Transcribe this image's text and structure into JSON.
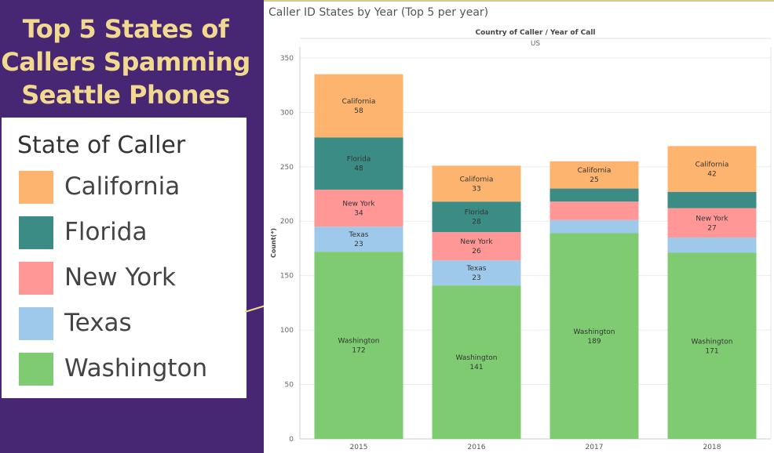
{
  "headline": {
    "lines": [
      "Top 5 States of",
      "Callers Spamming",
      "Seattle Phones"
    ]
  },
  "legend": {
    "title": "State of Caller",
    "items": [
      {
        "label": "California",
        "color": "#fdb46f"
      },
      {
        "label": "Florida",
        "color": "#3b8c85"
      },
      {
        "label": "New York",
        "color": "#ff9797"
      },
      {
        "label": "Texas",
        "color": "#9ec9ea"
      },
      {
        "label": "Washington",
        "color": "#7fcb72"
      }
    ]
  },
  "chart_data": {
    "type": "bar",
    "stacked": true,
    "title": "Caller ID States by Year (Top 5 per year)",
    "header_label": "Country of Caller  /  Year of Call",
    "group_label": "US",
    "ylabel": "Count(*)",
    "xlabel": "",
    "ylim": [
      0,
      360
    ],
    "yticks": [
      0,
      50,
      100,
      150,
      200,
      250,
      300,
      350
    ],
    "categories": [
      "2015",
      "2016",
      "2017",
      "2018"
    ],
    "series": [
      {
        "name": "Washington",
        "color": "#7fcb72",
        "values": [
          172,
          141,
          189,
          171
        ],
        "show_label": [
          true,
          true,
          true,
          true
        ]
      },
      {
        "name": "Texas",
        "color": "#9ec9ea",
        "values": [
          23,
          23,
          12,
          14
        ],
        "show_label": [
          true,
          true,
          false,
          false
        ]
      },
      {
        "name": "New York",
        "color": "#ff9797",
        "values": [
          34,
          26,
          17,
          27
        ],
        "show_label": [
          true,
          true,
          false,
          true
        ]
      },
      {
        "name": "Florida",
        "color": "#3b8c85",
        "values": [
          48,
          28,
          12,
          15
        ],
        "show_label": [
          true,
          true,
          false,
          false
        ]
      },
      {
        "name": "California",
        "color": "#fdb46f",
        "values": [
          58,
          33,
          25,
          42
        ],
        "show_label": [
          true,
          true,
          true,
          true
        ]
      }
    ],
    "grid": true,
    "legend_position": "left"
  }
}
